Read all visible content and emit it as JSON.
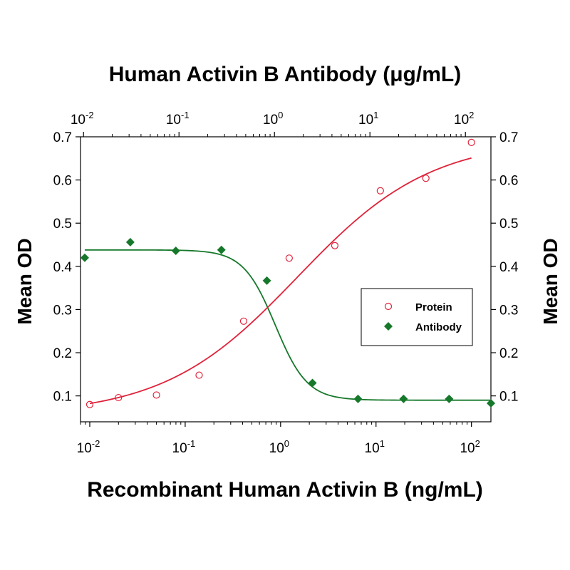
{
  "chart_data": {
    "type": "scatter",
    "top_axis_title": "Human Activin B Antibody (μg/mL)",
    "bottom_axis_title": "Recombinant Human Activin B (ng/mL)",
    "ylabel_left": "Mean OD",
    "ylabel_right": "Mean OD",
    "x_scale": "log",
    "xlim_bottom": [
      0.008,
      160
    ],
    "xlim_top": [
      0.0093,
      185
    ],
    "ylim": [
      0.04,
      0.7
    ],
    "y_ticks": [
      "0.1",
      "0.2",
      "0.3",
      "0.4",
      "0.5",
      "0.6",
      "0.7"
    ],
    "bottom_x_ticks": [
      {
        "value": 0.01,
        "base": "10",
        "exp": "-2"
      },
      {
        "value": 0.1,
        "base": "10",
        "exp": "-1"
      },
      {
        "value": 1,
        "base": "10",
        "exp": "0"
      },
      {
        "value": 10,
        "base": "10",
        "exp": "1"
      },
      {
        "value": 100,
        "base": "10",
        "exp": "2"
      }
    ],
    "top_x_ticks": [
      {
        "value": 0.01,
        "base": "10",
        "exp": "-2"
      },
      {
        "value": 0.1,
        "base": "10",
        "exp": "-1"
      },
      {
        "value": 1,
        "base": "10",
        "exp": "0"
      },
      {
        "value": 10,
        "base": "10",
        "exp": "1"
      },
      {
        "value": 100,
        "base": "10",
        "exp": "2"
      }
    ],
    "legend_position": "right",
    "series": [
      {
        "name": "Protein",
        "axis": "bottom",
        "color": "#e0223a",
        "marker": "open-circle",
        "x": [
          0.01,
          0.02,
          0.05,
          0.14,
          0.41,
          1.23,
          3.7,
          11.1,
          33.3,
          100
        ],
        "y": [
          0.08,
          0.096,
          0.102,
          0.148,
          0.273,
          0.419,
          0.448,
          0.575,
          0.604,
          0.687
        ],
        "fit": {
          "bottom": 0.055,
          "top": 0.695,
          "ec50": 1.5,
          "hill": 0.62,
          "range": [
            0.01,
            100
          ]
        }
      },
      {
        "name": "Antibody",
        "axis": "top",
        "color": "#16782a",
        "marker": "filled-diamond",
        "x": [
          0.0103,
          0.0309,
          0.0926,
          0.278,
          0.833,
          2.5,
          7.5,
          22.5,
          67.5,
          185
        ],
        "y": [
          0.42,
          0.456,
          0.436,
          0.438,
          0.367,
          0.13,
          0.093,
          0.093,
          0.093,
          0.083
        ],
        "fit": {
          "bottom": 0.09,
          "top": 0.438,
          "ec50": 1.02,
          "hill": -2.6,
          "range": [
            0.0103,
            185
          ]
        }
      }
    ]
  }
}
